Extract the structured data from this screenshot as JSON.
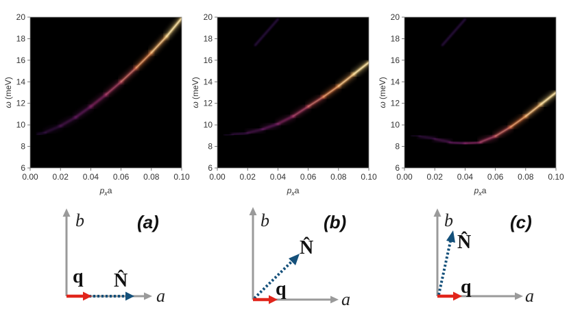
{
  "chart_data": [
    {
      "type": "heatmap",
      "panel": "a",
      "title": "",
      "xlabel": "p_x a",
      "ylabel": "ω (meV)",
      "xlim": [
        0.0,
        0.1
      ],
      "ylim": [
        6,
        20
      ],
      "xticks": [
        "0.00",
        "0.02",
        "0.04",
        "0.06",
        "0.08",
        "0.10"
      ],
      "yticks": [
        "6",
        "8",
        "10",
        "12",
        "14",
        "16",
        "18",
        "20"
      ],
      "dispersion": {
        "x": [
          0.005,
          0.01,
          0.02,
          0.03,
          0.04,
          0.05,
          0.06,
          0.07,
          0.08,
          0.09,
          0.1
        ],
        "y": [
          9.1,
          9.3,
          9.9,
          10.7,
          11.7,
          12.8,
          14.0,
          15.3,
          16.7,
          18.2,
          19.9
        ]
      },
      "ghost": null
    },
    {
      "type": "heatmap",
      "panel": "b",
      "title": "",
      "xlabel": "p_x a",
      "ylabel": "ω (meV)",
      "xlim": [
        0.0,
        0.1
      ],
      "ylim": [
        6,
        20
      ],
      "xticks": [
        "0.00",
        "0.02",
        "0.04",
        "0.06",
        "0.08",
        "0.10"
      ],
      "yticks": [
        "6",
        "8",
        "10",
        "12",
        "14",
        "16",
        "18",
        "20"
      ],
      "dispersion": {
        "x": [
          0.005,
          0.01,
          0.02,
          0.03,
          0.04,
          0.05,
          0.06,
          0.07,
          0.08,
          0.09,
          0.1
        ],
        "y": [
          9.05,
          9.1,
          9.25,
          9.6,
          10.1,
          10.8,
          11.7,
          12.6,
          13.6,
          14.7,
          15.8
        ]
      },
      "ghost": {
        "x": [
          0.025,
          0.03,
          0.04
        ],
        "y": [
          17.4,
          18.2,
          19.8
        ]
      }
    },
    {
      "type": "heatmap",
      "panel": "c",
      "title": "",
      "xlabel": "p_x a",
      "ylabel": "ω (meV)",
      "xlim": [
        0.0,
        0.1
      ],
      "ylim": [
        6,
        20
      ],
      "xticks": [
        "0.00",
        "0.02",
        "0.04",
        "0.06",
        "0.08",
        "0.10"
      ],
      "yticks": [
        "6",
        "8",
        "10",
        "12",
        "14",
        "16",
        "18",
        "20"
      ],
      "dispersion": {
        "x": [
          0.005,
          0.01,
          0.02,
          0.03,
          0.04,
          0.05,
          0.06,
          0.07,
          0.08,
          0.09,
          0.1
        ],
        "y": [
          9.0,
          8.95,
          8.7,
          8.4,
          8.25,
          8.4,
          8.95,
          9.8,
          10.8,
          11.9,
          13.0
        ]
      },
      "ghost": {
        "x": [
          0.025,
          0.03,
          0.04
        ],
        "y": [
          17.4,
          18.2,
          19.8
        ]
      }
    }
  ],
  "diagrams": [
    {
      "label": "(a)",
      "axis_a": "a",
      "axis_b": "b",
      "q": "q",
      "n_hat": "N̂",
      "n_angle_deg": 0
    },
    {
      "label": "(b)",
      "axis_a": "a",
      "axis_b": "b",
      "q": "q",
      "n_hat": "N̂",
      "n_angle_deg": 40
    },
    {
      "label": "(c)",
      "axis_a": "a",
      "axis_b": "b",
      "q": "q",
      "n_hat": "N̂",
      "n_angle_deg": 75
    }
  ],
  "colors": {
    "axis_gray": "#9a9a9a",
    "q_red": "#e1251b",
    "n_blue": "#14507a",
    "heat_bg": "#000000",
    "heat_dim": "#5a1f7a",
    "heat_mid": "#c8407a",
    "heat_hot": "#ffb040",
    "heat_peak": "#fff5c0"
  }
}
